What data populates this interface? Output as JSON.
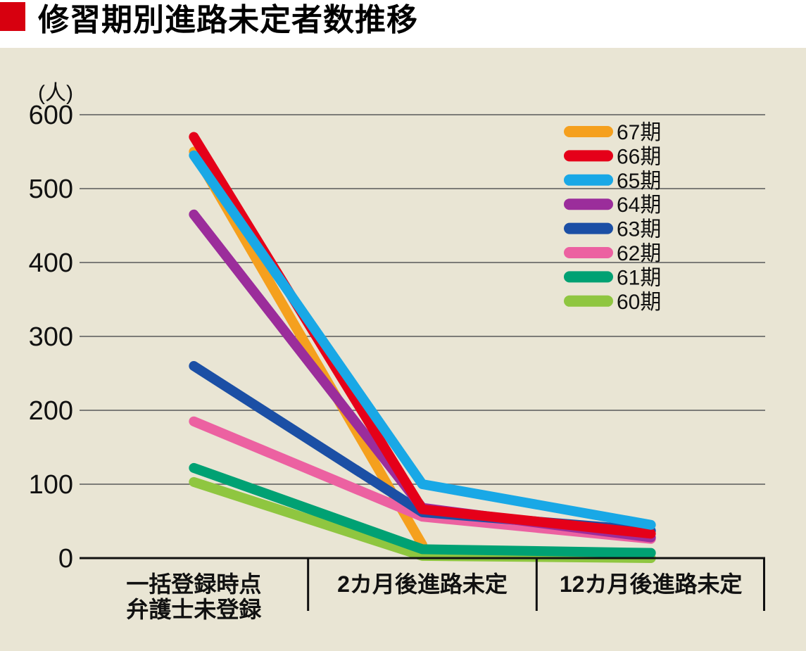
{
  "header": {
    "title": "修習期別進路未定者数推移"
  },
  "colors": {
    "title_marker": "#d7000f",
    "panel_bg": "#e9e5d4",
    "grid_line": "#7c7c78",
    "axis_line": "#111111",
    "text": "#111111"
  },
  "chart_data": {
    "type": "line",
    "title": "修習期別進路未定者数推移",
    "unit_label": "(人)",
    "categories": [
      [
        "一括登録時点",
        "弁護士未登録"
      ],
      [
        "2カ月後進路未定"
      ],
      [
        "12カ月後進路未定"
      ]
    ],
    "y_ticks": [
      600,
      500,
      400,
      300,
      200,
      100,
      0
    ],
    "ylim": [
      0,
      600
    ],
    "grid": true,
    "legend_position": "upper-right",
    "series": [
      {
        "name": "67期",
        "color": "#f5a01e",
        "values": [
          550,
          18,
          null
        ]
      },
      {
        "name": "66期",
        "color": "#e50019",
        "values": [
          570,
          66,
          33
        ]
      },
      {
        "name": "65期",
        "color": "#19a8e6",
        "values": [
          545,
          100,
          45
        ]
      },
      {
        "name": "64期",
        "color": "#9b2d9b",
        "values": [
          465,
          68,
          28
        ]
      },
      {
        "name": "63期",
        "color": "#1b4fa5",
        "values": [
          260,
          62,
          37
        ]
      },
      {
        "name": "62期",
        "color": "#ec61a1",
        "values": [
          185,
          56,
          26
        ]
      },
      {
        "name": "61期",
        "color": "#00a173",
        "values": [
          122,
          12,
          7
        ]
      },
      {
        "name": "60期",
        "color": "#8fc640",
        "values": [
          103,
          3,
          0
        ]
      }
    ],
    "draw_order": [
      "60期",
      "67期",
      "61期",
      "62期",
      "63期",
      "64期",
      "66期",
      "65期"
    ]
  }
}
